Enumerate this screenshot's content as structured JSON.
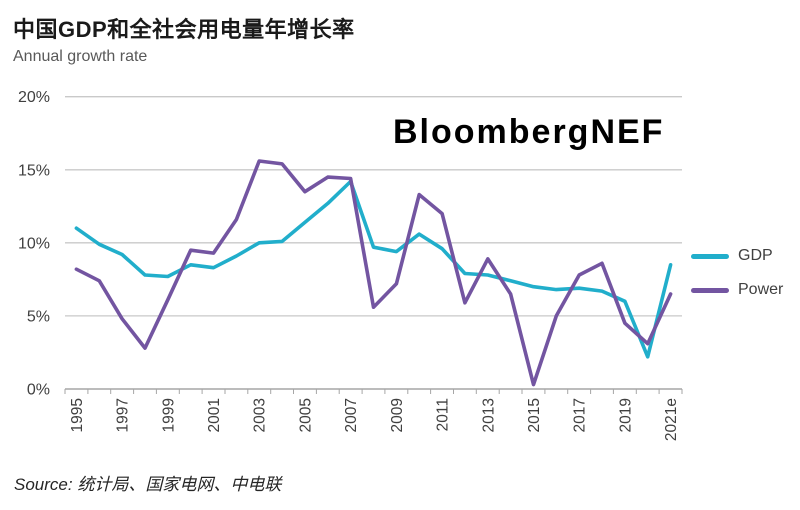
{
  "header": {
    "title": "中国GDP和全社会用电量年增长率",
    "subtitle": "Annual growth rate"
  },
  "watermark": "BloombergNEF",
  "source": {
    "prefix": "Source:",
    "text": " 统计局、国家电网、中电联"
  },
  "colors": {
    "gdp": "#21AECB",
    "power": "#7355A1",
    "gridline": "#C9C9C9",
    "axis": "#A6A6A6",
    "axis_text": "#404040"
  },
  "chart_data": {
    "type": "line",
    "title": "中国GDP和全社会用电量年增长率",
    "subtitle": "Annual growth rate",
    "x": [
      "1995",
      "1996",
      "1997",
      "1998",
      "1999",
      "2000",
      "2001",
      "2002",
      "2003",
      "2004",
      "2005",
      "2006",
      "2007",
      "2008",
      "2009",
      "2010",
      "2011",
      "2012",
      "2013",
      "2014",
      "2015",
      "2016",
      "2017",
      "2018",
      "2019",
      "2020",
      "2021e"
    ],
    "x_tick_every": 2,
    "series": [
      {
        "name": "GDP",
        "color": "#21AECB",
        "values": [
          11.0,
          9.9,
          9.2,
          7.8,
          7.7,
          8.5,
          8.3,
          9.1,
          10.0,
          10.1,
          11.4,
          12.7,
          14.2,
          9.7,
          9.4,
          10.6,
          9.6,
          7.9,
          7.8,
          7.4,
          7.0,
          6.8,
          6.9,
          6.7,
          6.0,
          2.2,
          8.5
        ]
      },
      {
        "name": "Power",
        "color": "#7355A1",
        "values": [
          8.2,
          7.4,
          4.8,
          2.8,
          6.1,
          9.5,
          9.3,
          11.6,
          15.6,
          15.4,
          13.5,
          14.5,
          14.4,
          5.6,
          7.2,
          13.3,
          12.0,
          5.9,
          8.9,
          6.5,
          0.3,
          5.0,
          7.8,
          8.6,
          4.5,
          3.1,
          6.5
        ]
      }
    ],
    "y_ticks": [
      {
        "label": "0%",
        "value": 0
      },
      {
        "label": "5%",
        "value": 5
      },
      {
        "label": "10%",
        "value": 10
      },
      {
        "label": "15%",
        "value": 15
      },
      {
        "label": "20%",
        "value": 20
      }
    ],
    "ylim": [
      0,
      20
    ],
    "grid": true,
    "legend_position": "right"
  }
}
